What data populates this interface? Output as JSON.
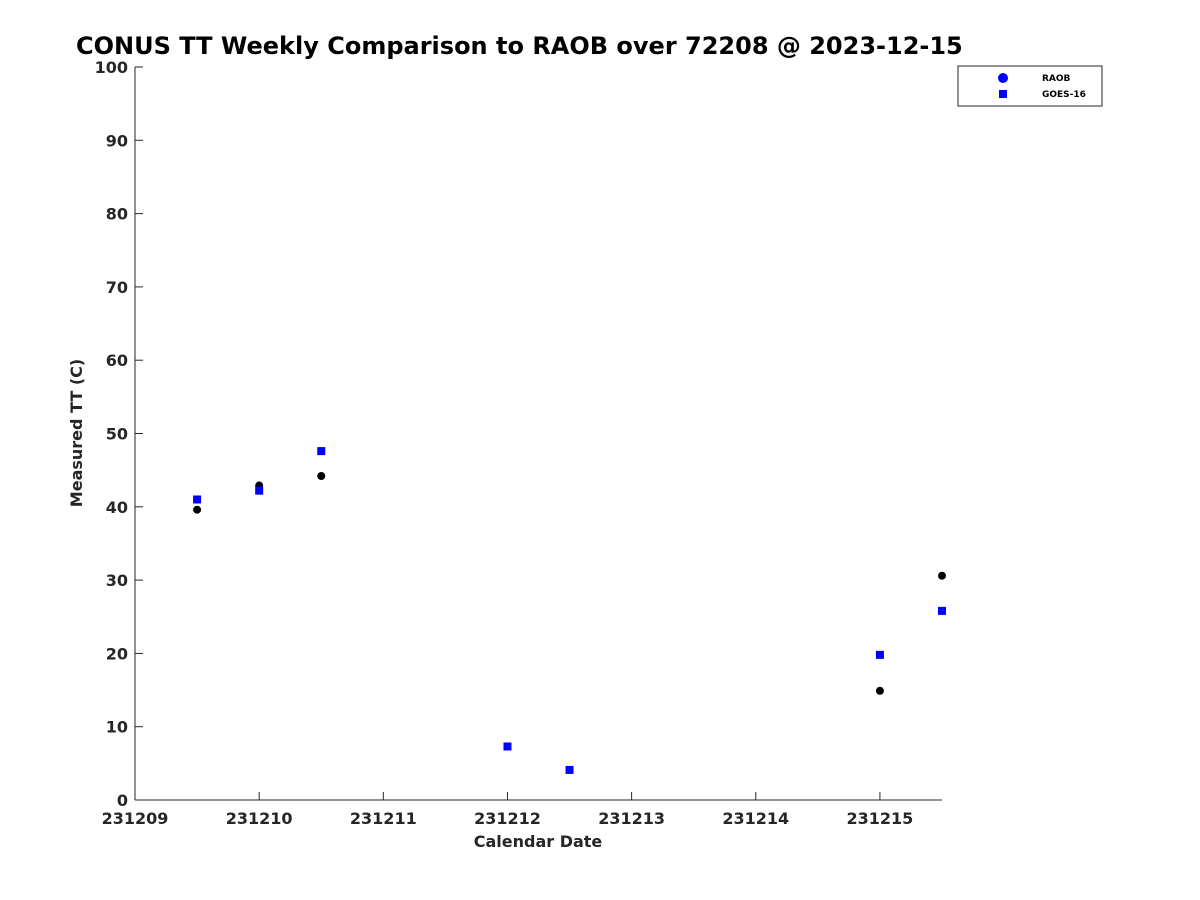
{
  "chart_data": {
    "type": "scatter",
    "title": "CONUS TT Weekly Comparison to RAOB over 72208 @ 2023-12-15",
    "xlabel": "Calendar Date",
    "ylabel": "Measured TT (C)",
    "xlim": [
      231209,
      231215.5
    ],
    "ylim": [
      0,
      100
    ],
    "x_ticks": [
      231209,
      231210,
      231211,
      231212,
      231213,
      231214,
      231215
    ],
    "x_tick_labels": [
      "231209",
      "231210",
      "231211",
      "231212",
      "231213",
      "231214",
      "231215"
    ],
    "y_ticks": [
      0,
      10,
      20,
      30,
      40,
      50,
      60,
      70,
      80,
      90,
      100
    ],
    "y_tick_labels": [
      "0",
      "10",
      "20",
      "30",
      "40",
      "50",
      "60",
      "70",
      "80",
      "90",
      "100"
    ],
    "grid": false,
    "legend_position": "top-right",
    "series": [
      {
        "name": "RAOB",
        "marker": "circle",
        "color": "#000000",
        "legend_color": "#0000ff",
        "x": [
          231209.5,
          231210.0,
          231210.5,
          231215.0,
          231215.5
        ],
        "y": [
          39.6,
          42.9,
          44.2,
          14.9,
          30.6
        ]
      },
      {
        "name": "GOES-16",
        "marker": "square",
        "color": "#0000ff",
        "legend_color": "#0000ff",
        "x": [
          231209.5,
          231210.0,
          231210.5,
          231212.0,
          231212.5,
          231215.0,
          231215.5
        ],
        "y": [
          41.0,
          42.2,
          47.6,
          7.3,
          4.1,
          19.8,
          25.8
        ]
      }
    ]
  }
}
